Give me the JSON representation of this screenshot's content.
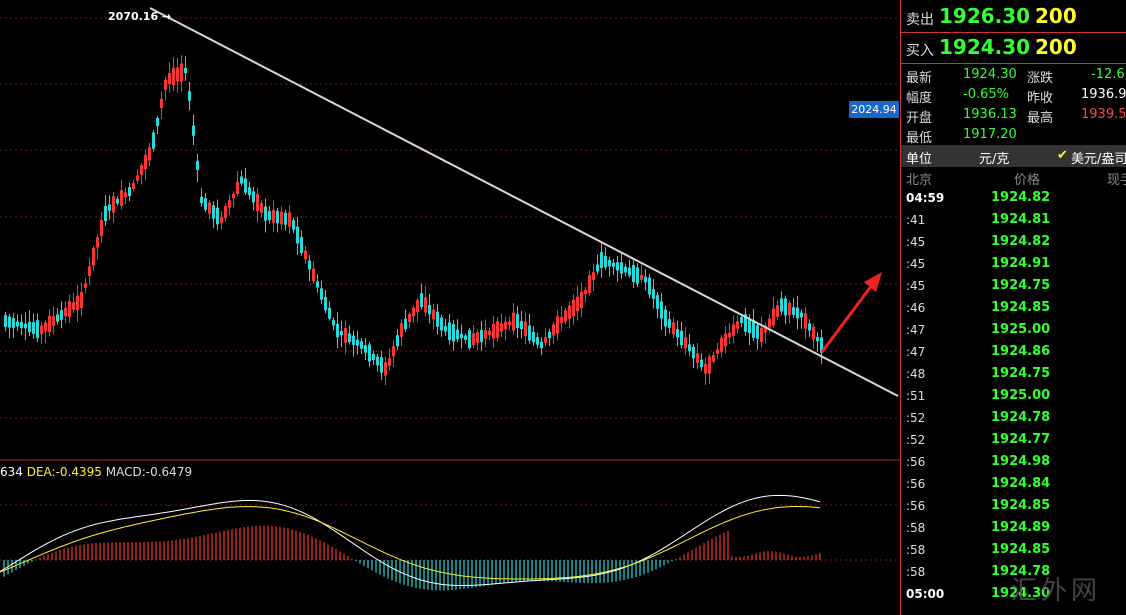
{
  "chart": {
    "high_label": "2070.16 →",
    "price_tag": "2024.94",
    "macd_legend": {
      "prefix": "634",
      "dea": "DEA:-0.4395",
      "macd": "MACD:-0.6479"
    },
    "colors": {
      "up": "#ff3333",
      "down": "#22dddd",
      "trendline": "#d8d8d8",
      "grid": "#7a1a1a",
      "dif_line": "#ffffff",
      "dea_line": "#ffee33",
      "arrow": "#ee2222"
    }
  },
  "chart_data": {
    "type": "candlestick",
    "high_annotation": 2070.16,
    "current_marker": 2024.94,
    "indicator": {
      "dea": -0.4395,
      "macd": -0.6479
    }
  },
  "quote": {
    "sell": {
      "label": "卖出",
      "price": "1926.30",
      "volume": "200"
    },
    "buy": {
      "label": "买入",
      "price": "1924.30",
      "volume": "200"
    }
  },
  "stats": {
    "latest_label": "最新",
    "latest": "1924.30",
    "change_label": "涨跌",
    "change": "-12.6",
    "range_label": "幅度",
    "range": "-0.65%",
    "prev_label": "昨收",
    "prev": "1936.9",
    "open_label": "开盘",
    "open": "1936.13",
    "high_label": "最高",
    "high": "1939.5",
    "low_label": "最低",
    "low": "1917.20"
  },
  "unit": {
    "label": "单位",
    "value": "元/克",
    "check": "✔",
    "alt": "美元/盎司"
  },
  "ticks_header": {
    "time": "北京",
    "price": "价格",
    "extra": "现手"
  },
  "ticks": [
    {
      "time": "04:59",
      "price": "1924.82",
      "big": true
    },
    {
      "time": ":41",
      "price": "1924.81"
    },
    {
      "time": ":45",
      "price": "1924.82"
    },
    {
      "time": ":45",
      "price": "1924.91"
    },
    {
      "time": ":45",
      "price": "1924.75"
    },
    {
      "time": ":46",
      "price": "1924.85"
    },
    {
      "time": ":47",
      "price": "1925.00"
    },
    {
      "time": ":47",
      "price": "1924.86"
    },
    {
      "time": ":48",
      "price": "1924.75"
    },
    {
      "time": ":51",
      "price": "1925.00"
    },
    {
      "time": ":52",
      "price": "1924.78"
    },
    {
      "time": ":52",
      "price": "1924.77"
    },
    {
      "time": ":56",
      "price": "1924.98"
    },
    {
      "time": ":56",
      "price": "1924.84"
    },
    {
      "time": ":56",
      "price": "1924.85"
    },
    {
      "time": ":58",
      "price": "1924.89"
    },
    {
      "time": ":58",
      "price": "1924.85"
    },
    {
      "time": ":58",
      "price": "1924.78"
    },
    {
      "time": "05:00",
      "price": "1924.30",
      "big": true
    }
  ],
  "watermark": "汇外网"
}
